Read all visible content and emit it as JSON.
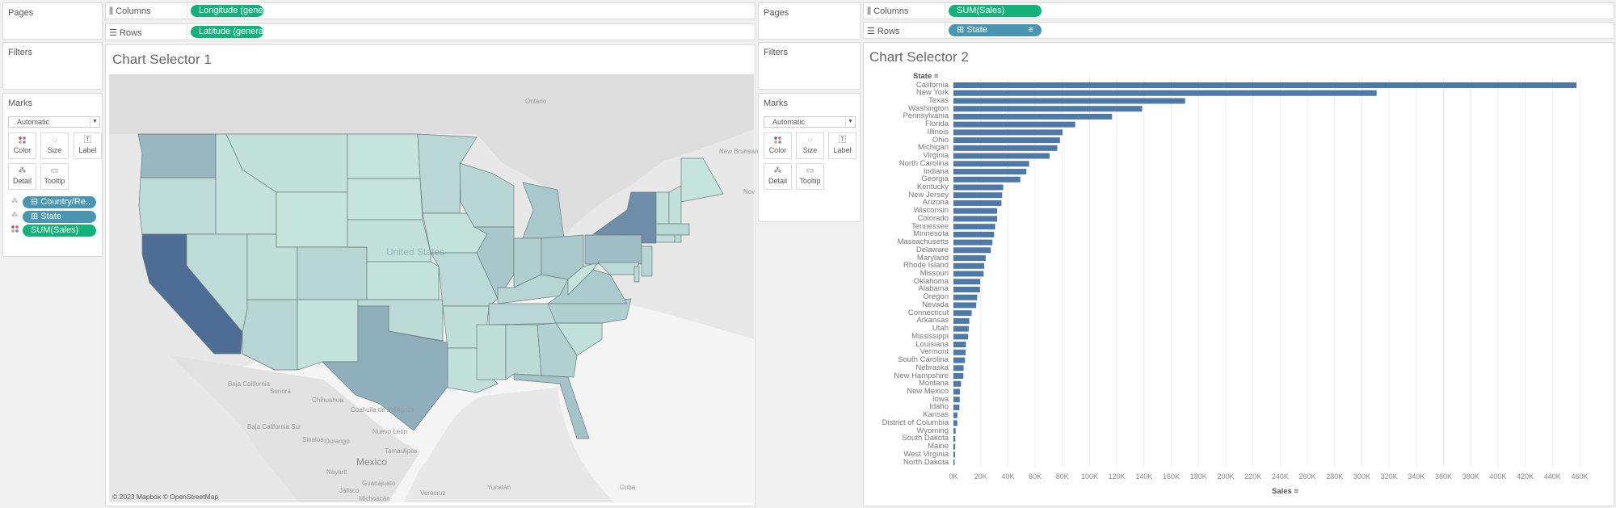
{
  "left": {
    "pages_title": "Pages",
    "filters_title": "Filters",
    "marks_title": "Marks",
    "mark_type": "Automatic",
    "buttons": {
      "color": "Color",
      "size": "Size",
      "label": "Label",
      "detail": "Detail",
      "tooltip": "Tooltip"
    },
    "mark_pills": [
      "Country/Re..",
      "State",
      "SUM(Sales)"
    ],
    "columns_label": "Columns",
    "rows_label": "Rows",
    "columns_pill": "Longitude (generate..",
    "rows_pill": "Latitude (generated)",
    "sheet_title": "Chart Selector 1"
  },
  "map": {
    "attribution": "© 2023 Mapbox © OpenStreetMap",
    "place_labels": {
      "ontario": "Ontario",
      "new_brunswick": "New Brunswick",
      "nova": "Nov",
      "united_states": "United States",
      "baja_california": "Baja California",
      "sonora": "Sonora",
      "chihuahua": "Chihuahua",
      "coahuila": "Coahuila de Zaragoza",
      "baja_california_sur": "Baja California Sur",
      "nuevo_leon": "Nuevo León",
      "sinaloa": "Sinaloa",
      "durango": "Durango",
      "tamaulipas": "Tamaulipas",
      "mexico": "Mexico",
      "nayarit": "Nayarit",
      "guanajuato": "Guanajuato",
      "jalisco": "Jalisco",
      "veracruz": "Veracruz",
      "michoacan": "Michoacán",
      "yucatan": "Yucatán",
      "cuba": "Cuba"
    },
    "color_low": "#c6e5dd",
    "color_high": "#4e6d95"
  },
  "right": {
    "pages_title": "Pages",
    "filters_title": "Filters",
    "marks_title": "Marks",
    "mark_type": "Automatic",
    "buttons": {
      "color": "Color",
      "size": "Size",
      "label": "Label",
      "detail": "Detail",
      "tooltip": "Tooltip"
    },
    "columns_label": "Columns",
    "rows_label": "Rows",
    "columns_pill": "SUM(Sales)",
    "rows_pill": "State",
    "sheet_title": "Chart Selector 2"
  },
  "chart_data": {
    "type": "bar",
    "orientation": "horizontal",
    "title": "Chart Selector 2",
    "ylabel": "State",
    "xlabel": "Sales",
    "xlim": [
      0,
      470000
    ],
    "grid": true,
    "bar_color": "#4e79a7",
    "x_ticks": [
      "0K",
      "20K",
      "40K",
      "60K",
      "80K",
      "100K",
      "120K",
      "140K",
      "160K",
      "180K",
      "200K",
      "220K",
      "240K",
      "260K",
      "280K",
      "300K",
      "320K",
      "340K",
      "360K",
      "380K",
      "400K",
      "420K",
      "440K",
      "460K"
    ],
    "categories": [
      "California",
      "New York",
      "Texas",
      "Washington",
      "Pennsylvania",
      "Florida",
      "Illinois",
      "Ohio",
      "Michigan",
      "Virginia",
      "North Carolina",
      "Indiana",
      "Georgia",
      "Kentucky",
      "New Jersey",
      "Arizona",
      "Wisconsin",
      "Colorado",
      "Tennessee",
      "Minnesota",
      "Massachusetts",
      "Delaware",
      "Maryland",
      "Rhode Island",
      "Missouri",
      "Oklahoma",
      "Alabama",
      "Oregon",
      "Nevada",
      "Connecticut",
      "Arkansas",
      "Utah",
      "Mississippi",
      "Louisiana",
      "Vermont",
      "South Carolina",
      "Nebraska",
      "New Hampshire",
      "Montana",
      "New Mexico",
      "Iowa",
      "Idaho",
      "Kansas",
      "District of Columbia",
      "Wyoming",
      "South Dakota",
      "Maine",
      "West Virginia",
      "North Dakota"
    ],
    "values": [
      457688,
      310876,
      170188,
      138641,
      116512,
      89474,
      80166,
      78258,
      76270,
      70637,
      55603,
      53555,
      49096,
      36592,
      35764,
      35282,
      32115,
      32108,
      30662,
      29863,
      28634,
      27451,
      23706,
      22628,
      22205,
      19683,
      19511,
      17431,
      16729,
      13384,
      11678,
      11220,
      10771,
      9217,
      8929,
      8482,
      7465,
      7293,
      5589,
      4784,
      4580,
      4382,
      2914,
      2865,
      1603,
      1316,
      1271,
      1210,
      920
    ]
  }
}
